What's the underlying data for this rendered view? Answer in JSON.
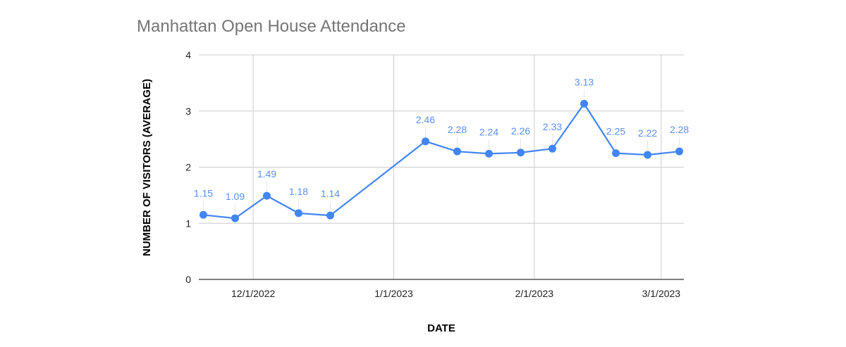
{
  "chart_data": {
    "type": "line",
    "title": "Manhattan Open House Attendance",
    "xlabel": "DATE",
    "ylabel": "NUMBER OF VISITORS (AVERAGE)",
    "x_tick_labels": [
      "12/1/2022",
      "1/1/2023",
      "2/1/2023",
      "3/1/2023"
    ],
    "x_tick_dates": [
      "2022-12-01",
      "2023-01-01",
      "2023-02-01",
      "2023-03-01"
    ],
    "x_range": [
      "2022-11-19",
      "2023-03-06"
    ],
    "ylim": [
      0,
      4
    ],
    "y_ticks": [
      0,
      1,
      2,
      3,
      4
    ],
    "grid": true,
    "legend": "none",
    "color": "#4285F4",
    "label_color": "#5B8FF0",
    "series": [
      {
        "points": [
          {
            "x": "2022-11-20",
            "y": 1.15,
            "label": "1.15"
          },
          {
            "x": "2022-11-27",
            "y": 1.09,
            "label": "1.09"
          },
          {
            "x": "2022-12-04",
            "y": 1.49,
            "label": "1.49"
          },
          {
            "x": "2022-12-11",
            "y": 1.18,
            "label": "1.18"
          },
          {
            "x": "2022-12-18",
            "y": 1.14,
            "label": "1.14"
          },
          {
            "x": "2023-01-08",
            "y": 2.46,
            "label": "2.46"
          },
          {
            "x": "2023-01-15",
            "y": 2.28,
            "label": "2.28"
          },
          {
            "x": "2023-01-22",
            "y": 2.24,
            "label": "2.24"
          },
          {
            "x": "2023-01-29",
            "y": 2.26,
            "label": "2.26"
          },
          {
            "x": "2023-02-05",
            "y": 2.33,
            "label": "2.33"
          },
          {
            "x": "2023-02-12",
            "y": 3.13,
            "label": "3.13"
          },
          {
            "x": "2023-02-19",
            "y": 2.25,
            "label": "2.25"
          },
          {
            "x": "2023-02-26",
            "y": 2.22,
            "label": "2.22"
          },
          {
            "x": "2023-03-05",
            "y": 2.28,
            "label": "2.28"
          }
        ]
      }
    ]
  }
}
